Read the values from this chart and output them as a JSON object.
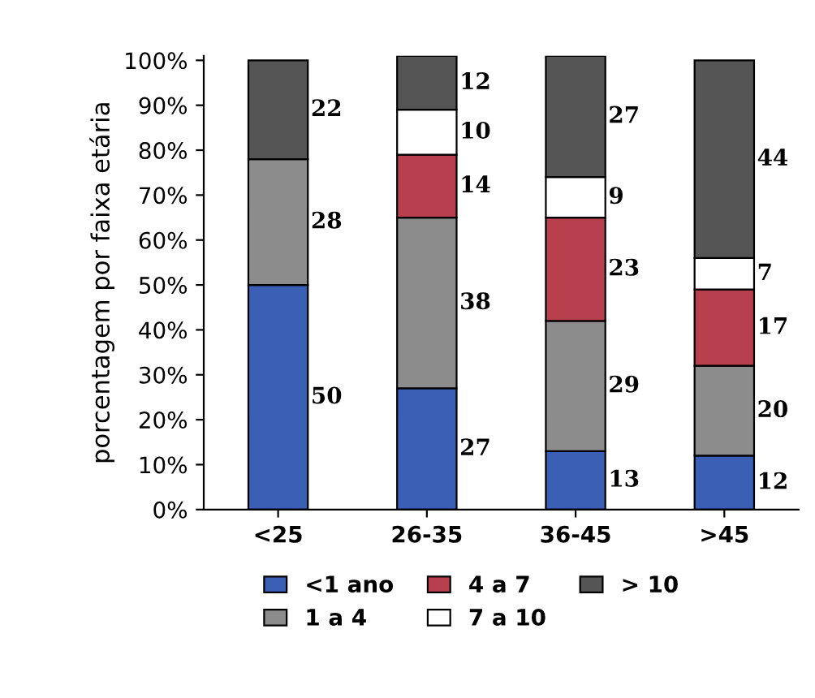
{
  "chart_data": {
    "type": "bar",
    "stacked": true,
    "ylabel": "porcentagem por faixa etária",
    "categories": [
      "<25",
      "26-35",
      "36-45",
      ">45"
    ],
    "series": [
      {
        "name": "<1 ano",
        "color": "#3a5fb5",
        "values": [
          50,
          27,
          13,
          12
        ]
      },
      {
        "name": "1 a 4",
        "color": "#8c8c8c",
        "values": [
          28,
          38,
          29,
          20
        ]
      },
      {
        "name": "4 a 7",
        "color": "#b8404e",
        "values": [
          null,
          14,
          23,
          17
        ]
      },
      {
        "name": "7 a 10",
        "color": "#ffffff",
        "values": [
          null,
          10,
          9,
          7
        ]
      },
      {
        "name": "> 10",
        "color": "#555555",
        "values": [
          22,
          12,
          27,
          44
        ]
      }
    ],
    "ylim": [
      0,
      101
    ],
    "yticks": [
      {
        "value": 0,
        "label": "0%"
      },
      {
        "value": 10,
        "label": "10%"
      },
      {
        "value": 20,
        "label": "20%"
      },
      {
        "value": 30,
        "label": "30%"
      },
      {
        "value": 40,
        "label": "40%"
      },
      {
        "value": 50,
        "label": "50%"
      },
      {
        "value": 60,
        "label": "60%"
      },
      {
        "value": 70,
        "label": "70%"
      },
      {
        "value": 80,
        "label": "80%"
      },
      {
        "value": 90,
        "label": "90%"
      },
      {
        "value": 100,
        "label": "100%"
      }
    ],
    "data_labels": true,
    "legend": "bottom",
    "grid": false
  }
}
